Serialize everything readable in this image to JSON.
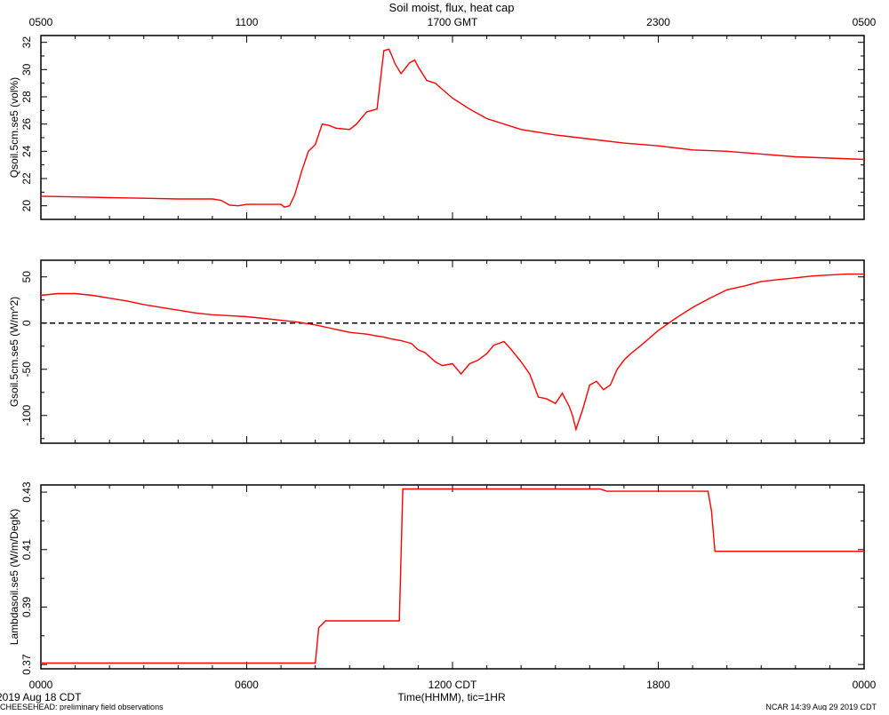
{
  "header": {
    "title": "Soil moist, flux, heat cap",
    "top_ticks": [
      "0500",
      "1100",
      "1700 GMT",
      "2300",
      "0500"
    ]
  },
  "footer": {
    "xlabel": "Time(HHMM), tic=1HR",
    "bottom_ticks": [
      "0000",
      "0600",
      "1200 CDT",
      "1800",
      "0000"
    ],
    "date_label": "2019 Aug 18 CDT",
    "project_note": "CHEESEHEAD: preliminary field observations",
    "credit": "NCAR 14:39 Aug 29 2019 CDT"
  },
  "colors": {
    "series": "#ff0000",
    "axes": "#000000",
    "background": "#ffffff"
  },
  "chart_data": [
    {
      "type": "line",
      "ylabel": "Qsoil.5cm.se5 (vol%)",
      "x_unit": "hours CDT",
      "xlim": [
        0,
        24
      ],
      "ylim": [
        19,
        32.5
      ],
      "yticks": [
        20,
        22,
        24,
        26,
        28,
        30,
        32
      ],
      "ytick_labels": [
        "20",
        "22",
        "24",
        "26",
        "28",
        "30",
        "32"
      ],
      "zero_line": false,
      "x": [
        0,
        1,
        2,
        3,
        4,
        5,
        5.25,
        5.5,
        5.75,
        6,
        6.5,
        7,
        7.1,
        7.25,
        7.4,
        7.6,
        7.8,
        8,
        8.2,
        8.4,
        8.6,
        9,
        9.2,
        9.5,
        9.8,
        10,
        10.15,
        10.25,
        10.33,
        10.5,
        10.75,
        10.9,
        11,
        11.25,
        11.5,
        12,
        12.5,
        13,
        14,
        15,
        16,
        17,
        18,
        19,
        20,
        21,
        22,
        23,
        24
      ],
      "y": [
        20.7,
        20.65,
        20.6,
        20.55,
        20.5,
        20.5,
        20.4,
        20.05,
        20.0,
        20.1,
        20.1,
        20.1,
        19.9,
        20.0,
        20.8,
        22.5,
        24.0,
        24.5,
        26.0,
        25.9,
        25.7,
        25.6,
        26.0,
        26.9,
        27.1,
        31.4,
        31.5,
        30.9,
        30.4,
        29.7,
        30.5,
        30.7,
        30.2,
        29.2,
        29.0,
        27.9,
        27.1,
        26.4,
        25.6,
        25.2,
        24.9,
        24.6,
        24.4,
        24.1,
        24.0,
        23.8,
        23.6,
        23.5,
        23.4
      ]
    },
    {
      "type": "line",
      "ylabel": "Gsoil.5cm.se5 (W/m^2)",
      "x_unit": "hours CDT",
      "xlim": [
        0,
        24
      ],
      "ylim": [
        -130,
        68
      ],
      "yticks": [
        50,
        0,
        -50,
        -100
      ],
      "ytick_labels": [
        "50",
        "0",
        "-50",
        "-100"
      ],
      "zero_line": true,
      "x": [
        0,
        0.5,
        1,
        1.5,
        2,
        2.5,
        3,
        3.5,
        4,
        4.5,
        5,
        5.5,
        6,
        6.5,
        7,
        7.5,
        8,
        8.5,
        9,
        9.5,
        9.8,
        10,
        10.2,
        10.5,
        10.8,
        11,
        11.2,
        11.5,
        11.7,
        12,
        12.25,
        12.5,
        12.75,
        13,
        13.2,
        13.5,
        13.7,
        14,
        14.25,
        14.5,
        14.75,
        15,
        15.2,
        15.4,
        15.5,
        15.6,
        15.8,
        16,
        16.2,
        16.4,
        16.6,
        16.8,
        17,
        17.2,
        17.5,
        18,
        18.5,
        19,
        19.5,
        20,
        20.5,
        21,
        21.5,
        22,
        22.5,
        23,
        23.5,
        24
      ],
      "y": [
        30,
        32,
        32,
        30,
        27,
        24,
        20,
        17,
        14,
        11,
        9,
        8,
        7,
        5,
        3,
        1,
        -2,
        -6,
        -10,
        -12,
        -14,
        -15,
        -17,
        -19,
        -22,
        -29,
        -32,
        -42,
        -46,
        -44,
        -55,
        -44,
        -40,
        -33,
        -24,
        -20,
        -28,
        -42,
        -55,
        -80,
        -82,
        -87,
        -76,
        -90,
        -100,
        -115,
        -93,
        -67,
        -63,
        -72,
        -67,
        -50,
        -40,
        -33,
        -24,
        -8,
        5,
        17,
        27,
        36,
        40,
        45,
        47,
        49,
        51,
        52,
        53,
        53
      ]
    },
    {
      "type": "line",
      "ylabel": "Lambdasoil.se5 (W/m/DegK)",
      "x_unit": "hours CDT",
      "xlim": [
        0,
        24
      ],
      "ylim": [
        0.3685,
        0.4325
      ],
      "yticks": [
        0.37,
        0.39,
        0.41,
        0.43
      ],
      "ytick_labels": [
        "0.37",
        "0.39",
        "0.41",
        "0.43"
      ],
      "zero_line": false,
      "x": [
        0,
        8.0,
        8.1,
        8.3,
        10.45,
        10.55,
        16.3,
        16.5,
        19.45,
        19.55,
        19.65,
        24
      ],
      "y": [
        0.3705,
        0.3705,
        0.3828,
        0.3852,
        0.3852,
        0.4311,
        0.4311,
        0.4303,
        0.4303,
        0.4235,
        0.4094,
        0.4094
      ]
    }
  ]
}
